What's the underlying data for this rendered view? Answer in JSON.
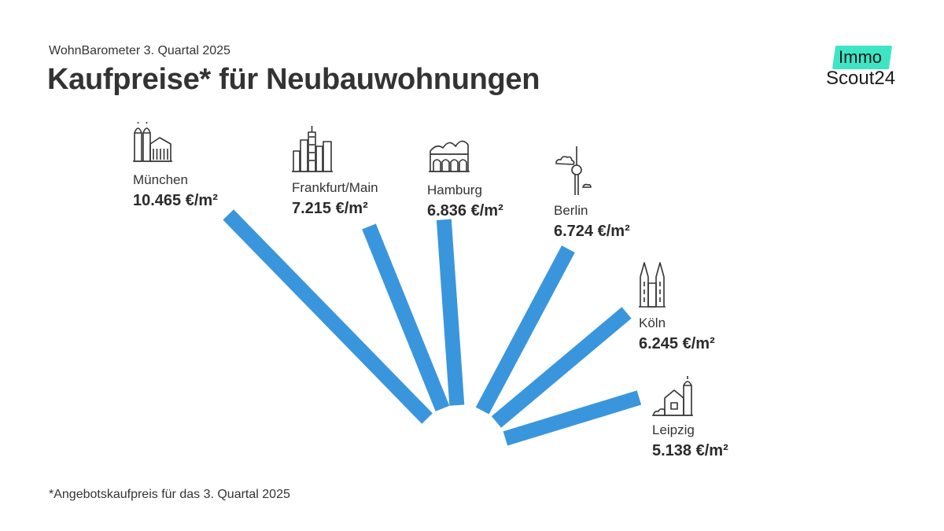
{
  "header": {
    "subtitle": "WohnBarometer 3. Quartal 2025",
    "title": "Kaufpreise* für Neubauwohnungen"
  },
  "logo": {
    "line1": "Immo",
    "line2": "Scout24",
    "accent_color": "#3ee5c4"
  },
  "footnote": "*Angebotskaufpreis für das 3. Quartal 2025",
  "chart_data": {
    "type": "bar",
    "layout": "radial",
    "bar_color": "#3a96dc",
    "unit": "€/m²",
    "categories": [
      "München",
      "Frankfurt/Main",
      "Hamburg",
      "Berlin",
      "Köln",
      "Leipzig"
    ],
    "values": [
      10465,
      7215,
      6836,
      6724,
      6245,
      5138
    ],
    "value_labels": [
      "10.465 €/m²",
      "7.215 €/m²",
      "6.836 €/m²",
      "6.724 €/m²",
      "6.245 €/m²",
      "5.138 €/m²"
    ],
    "icons": [
      "frauenkirche-icon",
      "skyline-icon",
      "elbphilharmonie-icon",
      "tv-tower-icon",
      "cathedral-icon",
      "old-town-hall-icon"
    ]
  }
}
